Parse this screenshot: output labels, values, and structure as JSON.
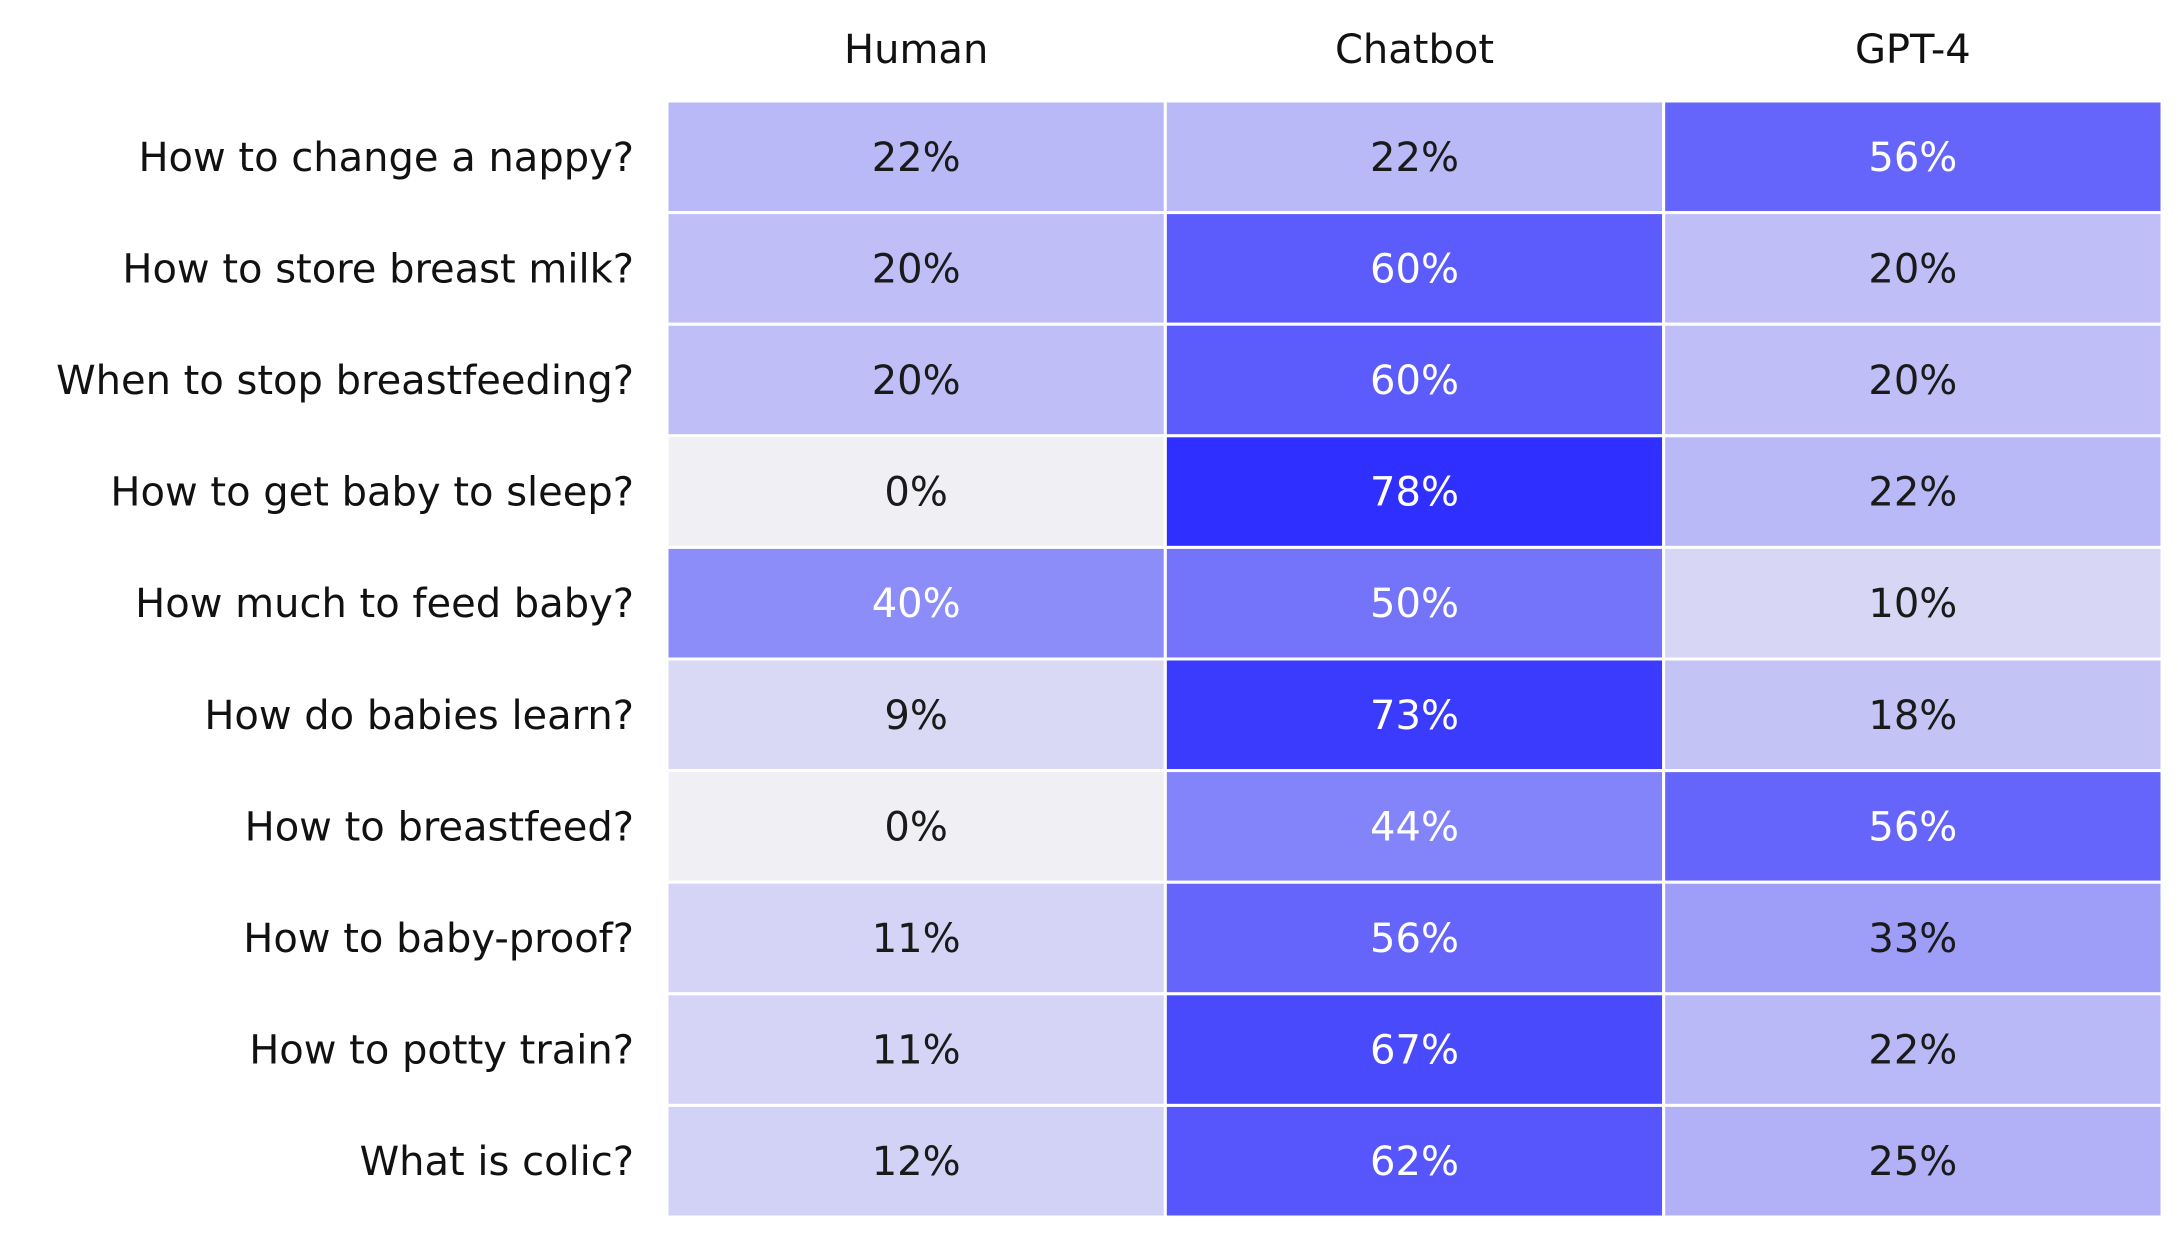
{
  "chart_data": {
    "type": "heatmap",
    "columns": [
      "Human",
      "Chatbot",
      "GPT-4"
    ],
    "rows": [
      {
        "label": "How to change a nappy?",
        "values": [
          22,
          22,
          56
        ]
      },
      {
        "label": "How to store breast milk?",
        "values": [
          20,
          60,
          20
        ]
      },
      {
        "label": "When to stop breastfeeding?",
        "values": [
          20,
          60,
          20
        ]
      },
      {
        "label": "How to get baby to sleep?",
        "values": [
          0,
          78,
          22
        ]
      },
      {
        "label": "How much to feed baby?",
        "values": [
          40,
          50,
          10
        ]
      },
      {
        "label": "How do babies learn?",
        "values": [
          9,
          73,
          18
        ]
      },
      {
        "label": "How to breastfeed?",
        "values": [
          0,
          44,
          56
        ]
      },
      {
        "label": "How to baby-proof?",
        "values": [
          11,
          56,
          33
        ]
      },
      {
        "label": "How to potty train?",
        "values": [
          11,
          67,
          22
        ]
      },
      {
        "label": "What is colic?",
        "values": [
          12,
          62,
          25
        ]
      }
    ],
    "value_suffix": "%",
    "color_low": "#f0eff4",
    "color_high": "#2a2aff",
    "value_range": [
      0,
      80
    ],
    "text_dark": "#1a1a1a",
    "text_light": "#ffffff",
    "grid_color": "#ffffff"
  }
}
